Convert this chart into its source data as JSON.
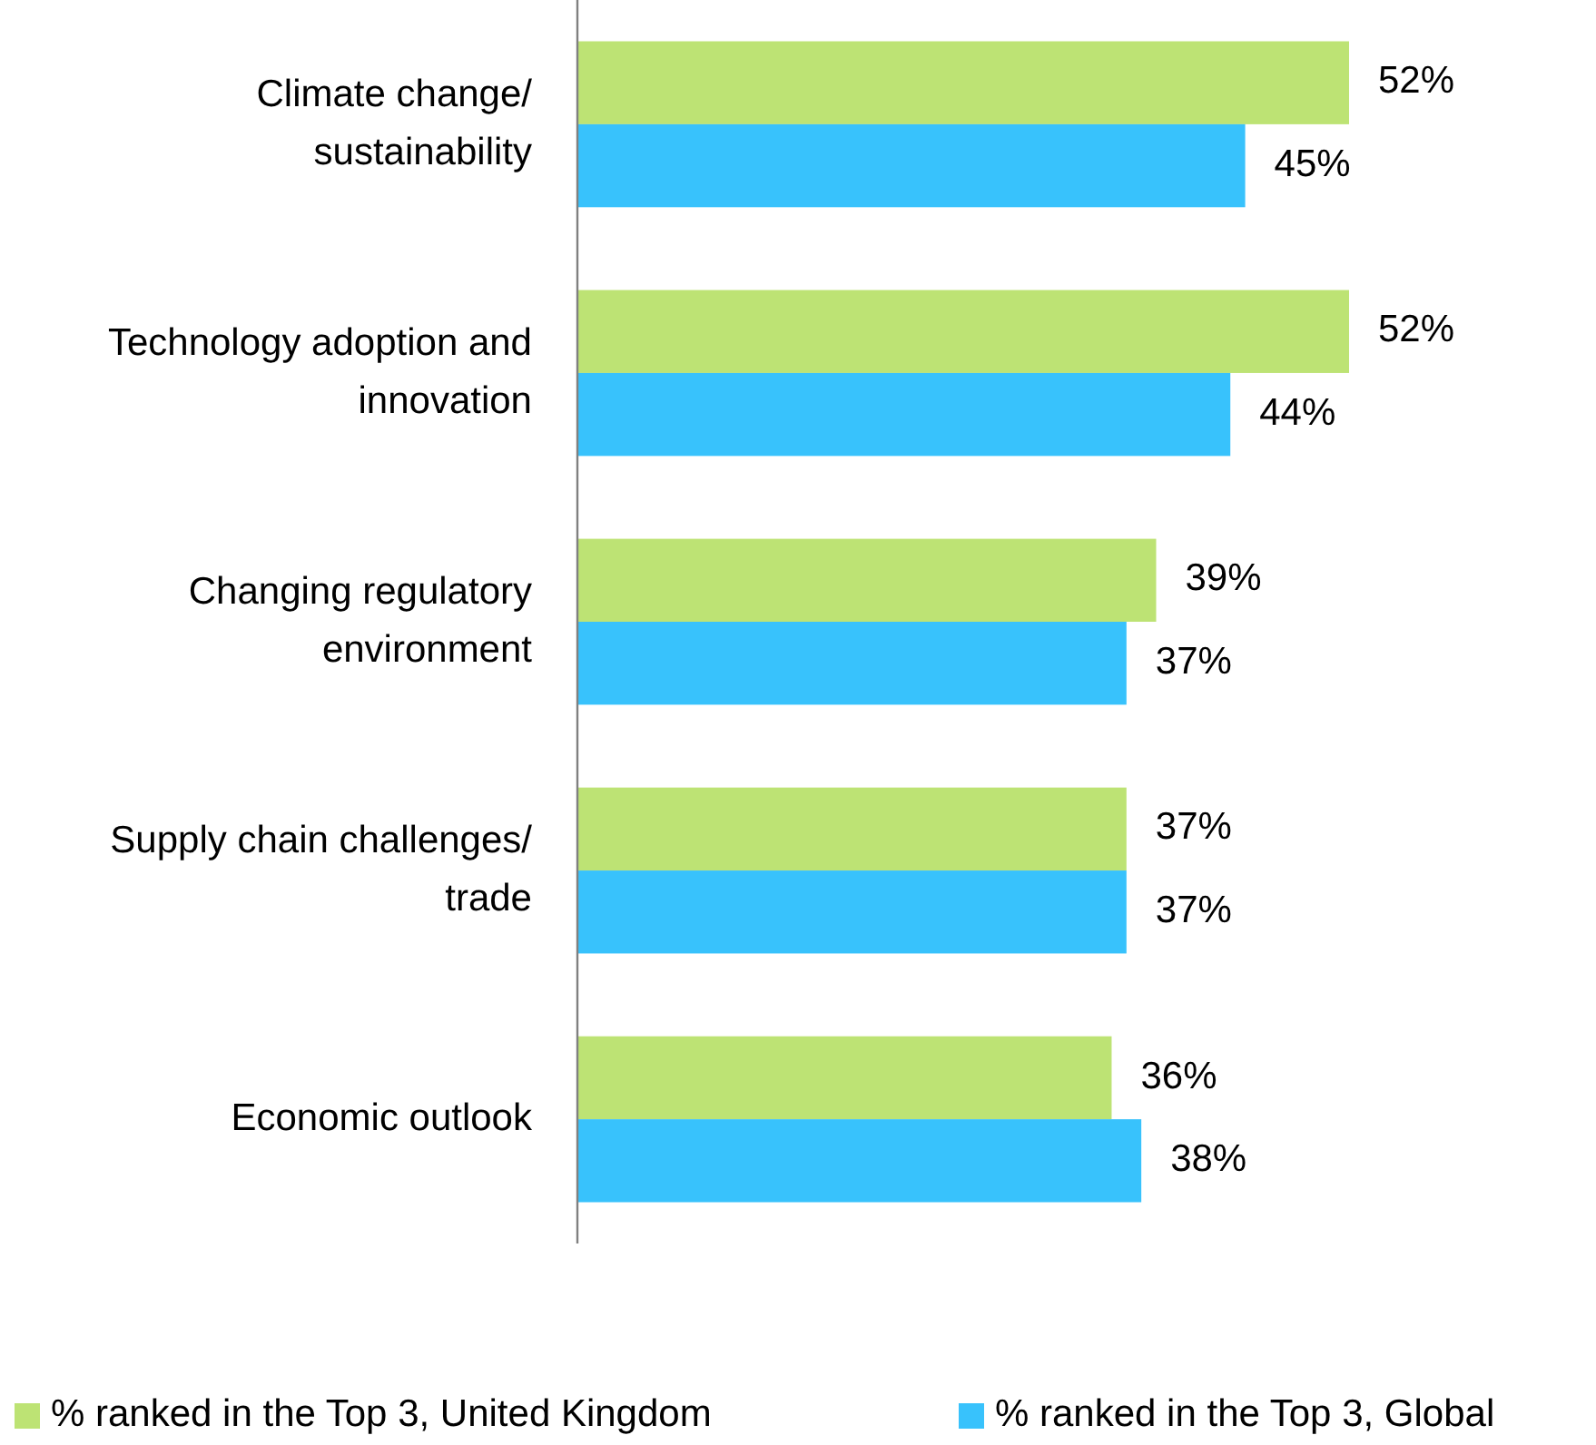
{
  "chart_data": {
    "type": "bar",
    "orientation": "horizontal",
    "categories": [
      "Climate change/ sustainability",
      "Technology adoption and innovation",
      "Changing regulatory environment",
      "Supply chain challenges/ trade",
      "Economic outlook"
    ],
    "series": [
      {
        "name": "% ranked in the Top 3, United Kingdom",
        "color": "#bde374",
        "values": [
          52,
          52,
          39,
          37,
          36
        ],
        "value_labels": [
          "52%",
          "52%",
          "39%",
          "37%",
          "36%"
        ]
      },
      {
        "name": "% ranked in the Top 3, Global",
        "color": "#38c2fc",
        "values": [
          45,
          44,
          37,
          37,
          38
        ],
        "value_labels": [
          "45%",
          "44%",
          "37%",
          "37%",
          "38%"
        ]
      }
    ],
    "legend": "bottom"
  }
}
